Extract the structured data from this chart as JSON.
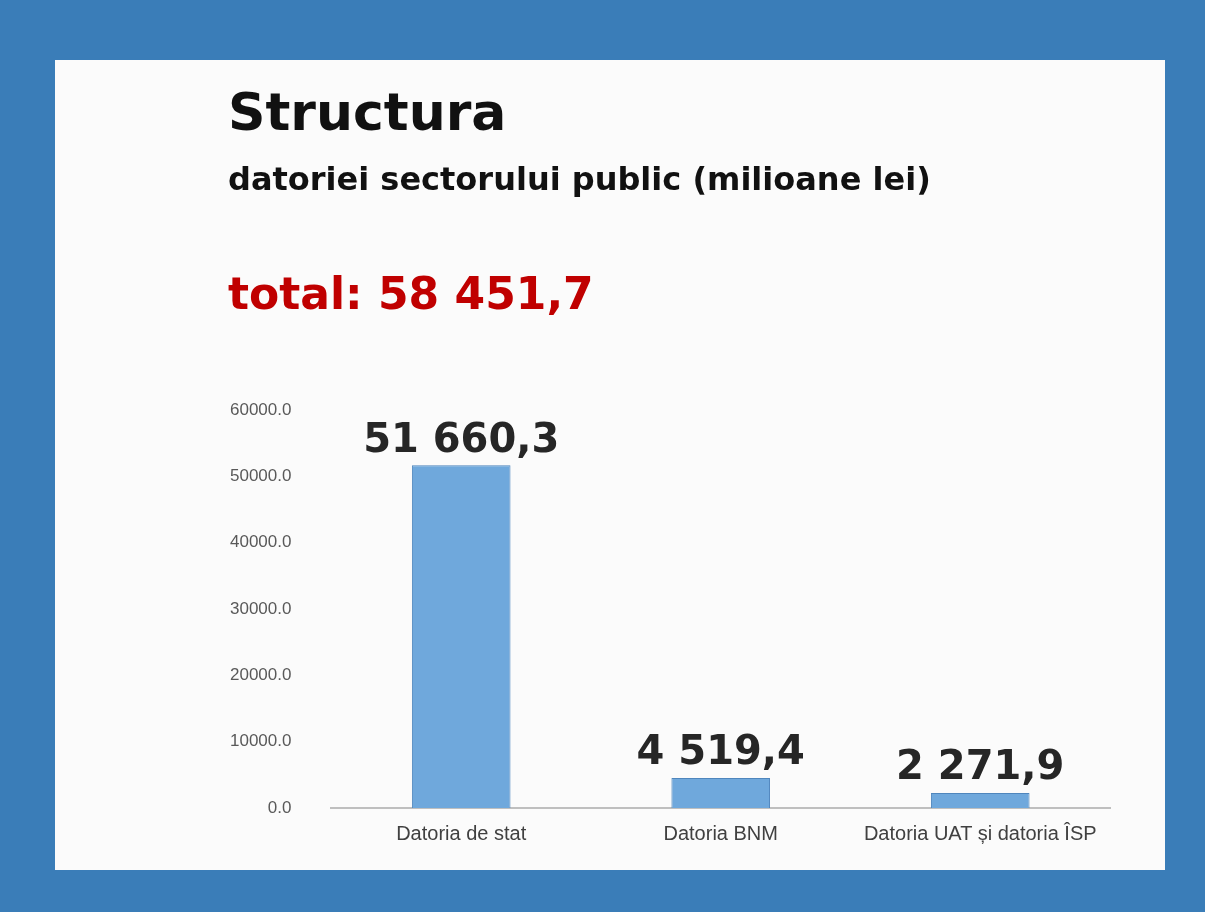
{
  "chart_data": {
    "type": "bar",
    "title": "Structura",
    "subtitle": "datoriei sectorului public (milioane lei)",
    "annotations": [
      "total: 58 451,7"
    ],
    "categories": [
      "Datoria de stat",
      "Datoria BNM",
      "Datoria UAT și datoria ÎSP"
    ],
    "values": [
      51660.3,
      4519.4,
      2271.9
    ],
    "color": "#6fa8dc",
    "value_labels": [
      "51 660,3",
      "4 519,4",
      "2 271,9"
    ],
    "ylim": [
      0,
      60000
    ],
    "yticks": [
      {
        "value": 0,
        "label": "0.0"
      },
      {
        "value": 10000,
        "label": "10000.0"
      },
      {
        "value": 20000,
        "label": "20000.0"
      },
      {
        "value": 30000,
        "label": "30000.0"
      },
      {
        "value": 40000,
        "label": "40000.0"
      },
      {
        "value": 50000,
        "label": "50000.0"
      },
      {
        "value": 60000,
        "label": "60000.0"
      }
    ],
    "grid": false,
    "legend": false
  }
}
